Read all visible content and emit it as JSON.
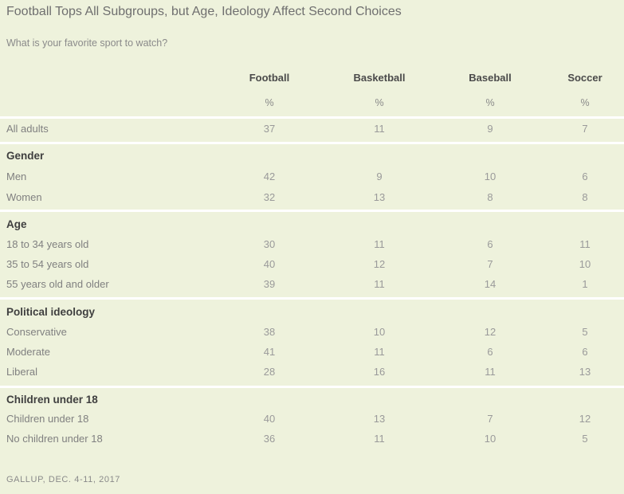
{
  "title": "Football Tops All Subgroups, but Age, Ideology Affect Second Choices",
  "subtitle": "What is your favorite sport to watch?",
  "source": "GALLUP, DEC. 4-11, 2017",
  "chart_data": {
    "type": "table",
    "columns": [
      "Football",
      "Basketball",
      "Baseball",
      "Soccer"
    ],
    "unit_row": [
      "%",
      "%",
      "%",
      "%"
    ],
    "groups": [
      {
        "label": "",
        "rows": [
          {
            "label": "All adults",
            "values": [
              "37",
              "11",
              "9",
              "7"
            ]
          }
        ]
      },
      {
        "label": "Gender",
        "rows": [
          {
            "label": "Men",
            "values": [
              "42",
              "9",
              "10",
              "6"
            ]
          },
          {
            "label": "Women",
            "values": [
              "32",
              "13",
              "8",
              "8"
            ]
          }
        ]
      },
      {
        "label": "Age",
        "rows": [
          {
            "label": "18 to 34 years old",
            "values": [
              "30",
              "11",
              "6",
              "11"
            ]
          },
          {
            "label": "35 to 54 years old",
            "values": [
              "40",
              "12",
              "7",
              "10"
            ]
          },
          {
            "label": "55 years old and older",
            "values": [
              "39",
              "11",
              "14",
              "1"
            ]
          }
        ]
      },
      {
        "label": "Political ideology",
        "rows": [
          {
            "label": "Conservative",
            "values": [
              "38",
              "10",
              "12",
              "5"
            ]
          },
          {
            "label": "Moderate",
            "values": [
              "41",
              "11",
              "6",
              "6"
            ]
          },
          {
            "label": "Liberal",
            "values": [
              "28",
              "16",
              "11",
              "13"
            ]
          }
        ]
      },
      {
        "label": "Children under 18",
        "rows": [
          {
            "label": "Children under 18",
            "values": [
              "40",
              "13",
              "7",
              "12"
            ]
          },
          {
            "label": "No children under 18",
            "values": [
              "36",
              "11",
              "10",
              "5"
            ]
          }
        ]
      }
    ]
  }
}
